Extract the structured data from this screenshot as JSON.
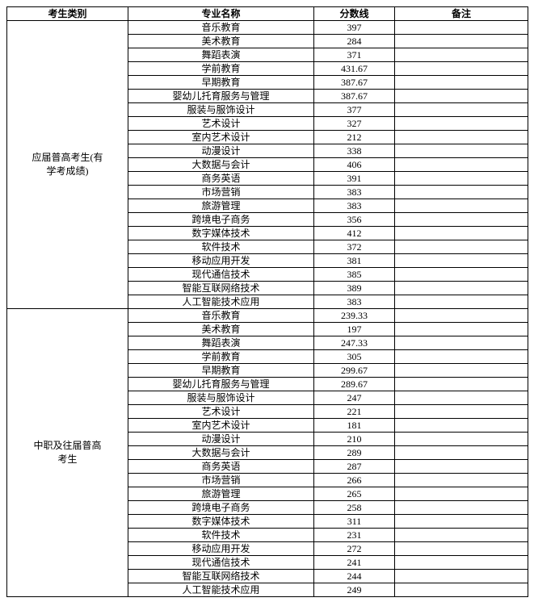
{
  "headers": {
    "category": "考生类别",
    "major": "专业名称",
    "score": "分数线",
    "remark": "备注"
  },
  "groups": [
    {
      "category": "应届普高考生(有\n学考成绩)",
      "rows": [
        {
          "major": "音乐教育",
          "score": "397",
          "remark": ""
        },
        {
          "major": "美术教育",
          "score": "284",
          "remark": ""
        },
        {
          "major": "舞蹈表演",
          "score": "371",
          "remark": ""
        },
        {
          "major": "学前教育",
          "score": "431.67",
          "remark": ""
        },
        {
          "major": "早期教育",
          "score": "387.67",
          "remark": ""
        },
        {
          "major": "婴幼儿托育服务与管理",
          "score": "387.67",
          "remark": ""
        },
        {
          "major": "服装与服饰设计",
          "score": "377",
          "remark": ""
        },
        {
          "major": "艺术设计",
          "score": "327",
          "remark": ""
        },
        {
          "major": "室内艺术设计",
          "score": "212",
          "remark": ""
        },
        {
          "major": "动漫设计",
          "score": "338",
          "remark": ""
        },
        {
          "major": "大数据与会计",
          "score": "406",
          "remark": ""
        },
        {
          "major": "商务英语",
          "score": "391",
          "remark": ""
        },
        {
          "major": "市场营销",
          "score": "383",
          "remark": ""
        },
        {
          "major": "旅游管理",
          "score": "383",
          "remark": ""
        },
        {
          "major": "跨境电子商务",
          "score": "356",
          "remark": ""
        },
        {
          "major": "数字媒体技术",
          "score": "412",
          "remark": ""
        },
        {
          "major": "软件技术",
          "score": "372",
          "remark": ""
        },
        {
          "major": "移动应用开发",
          "score": "381",
          "remark": ""
        },
        {
          "major": "现代通信技术",
          "score": "385",
          "remark": ""
        },
        {
          "major": "智能互联网络技术",
          "score": "389",
          "remark": ""
        },
        {
          "major": "人工智能技术应用",
          "score": "383",
          "remark": ""
        }
      ]
    },
    {
      "category": "中职及往届普高\n考生",
      "rows": [
        {
          "major": "音乐教育",
          "score": "239.33",
          "remark": ""
        },
        {
          "major": "美术教育",
          "score": "197",
          "remark": ""
        },
        {
          "major": "舞蹈表演",
          "score": "247.33",
          "remark": ""
        },
        {
          "major": "学前教育",
          "score": "305",
          "remark": ""
        },
        {
          "major": "早期教育",
          "score": "299.67",
          "remark": ""
        },
        {
          "major": "婴幼儿托育服务与管理",
          "score": "289.67",
          "remark": ""
        },
        {
          "major": "服装与服饰设计",
          "score": "247",
          "remark": ""
        },
        {
          "major": "艺术设计",
          "score": "221",
          "remark": ""
        },
        {
          "major": "室内艺术设计",
          "score": "181",
          "remark": ""
        },
        {
          "major": "动漫设计",
          "score": "210",
          "remark": ""
        },
        {
          "major": "大数据与会计",
          "score": "289",
          "remark": ""
        },
        {
          "major": "商务英语",
          "score": "287",
          "remark": ""
        },
        {
          "major": "市场营销",
          "score": "266",
          "remark": ""
        },
        {
          "major": "旅游管理",
          "score": "265",
          "remark": ""
        },
        {
          "major": "跨境电子商务",
          "score": "258",
          "remark": ""
        },
        {
          "major": "数字媒体技术",
          "score": "311",
          "remark": ""
        },
        {
          "major": "软件技术",
          "score": "231",
          "remark": ""
        },
        {
          "major": "移动应用开发",
          "score": "272",
          "remark": ""
        },
        {
          "major": "现代通信技术",
          "score": "241",
          "remark": ""
        },
        {
          "major": "智能互联网络技术",
          "score": "244",
          "remark": ""
        },
        {
          "major": "人工智能技术应用",
          "score": "249",
          "remark": ""
        }
      ]
    }
  ]
}
